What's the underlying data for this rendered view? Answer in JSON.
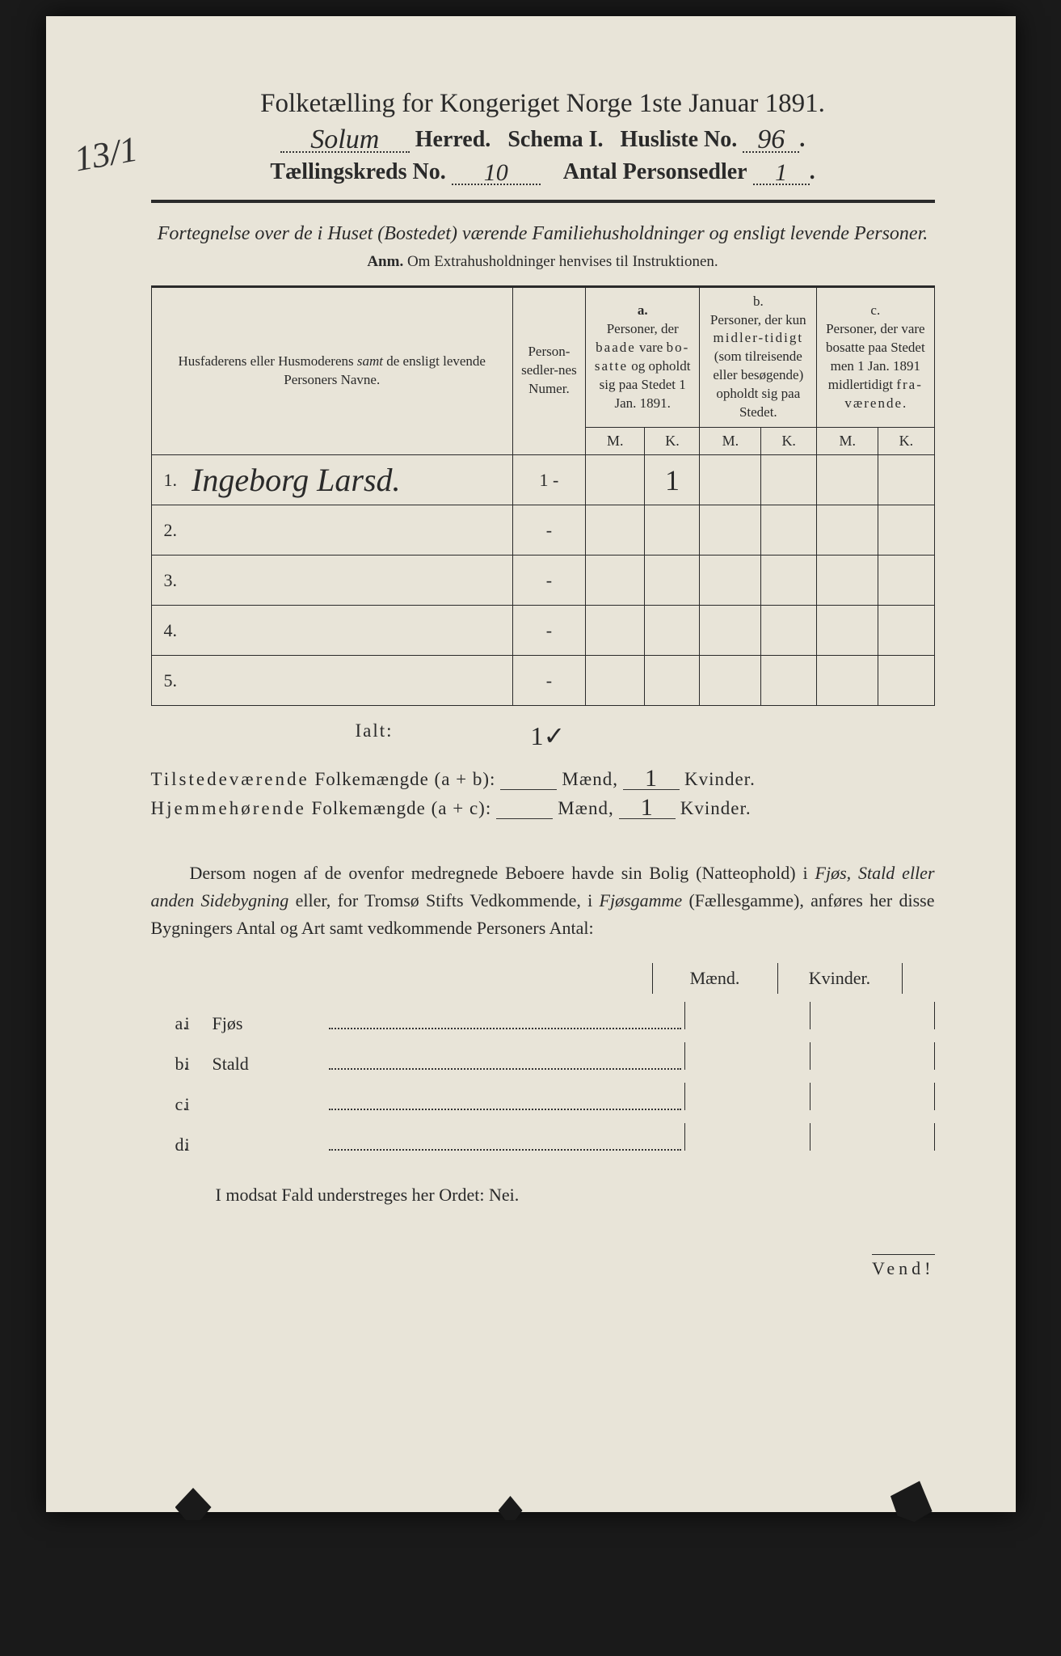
{
  "background_color": "#e8e4d8",
  "text_color": "#2a2a2a",
  "page_border_dark": "#1a1a1a",
  "handwriting_color": "#2a2a2a",
  "margin_note": "13/1",
  "title": "Folketælling for Kongeriget Norge 1ste Januar 1891.",
  "header": {
    "herred_value": "Solum",
    "herred_label": "Herred.",
    "schema_label": "Schema I.",
    "husliste_label": "Husliste No.",
    "husliste_value": "96",
    "kreds_label": "Tællingskreds No.",
    "kreds_value": "10",
    "antal_label": "Antal Personsedler",
    "antal_value": "1"
  },
  "intro": "Fortegnelse over de i Huset (Bostedet) værende Familiehusholdninger og ensligt levende Personer.",
  "anm_label": "Anm.",
  "anm_text": "Om Extrahusholdninger henvises til Instruktionen.",
  "columns": {
    "names": "Husfaderens eller Husmoderens samt de ensligt levende Personers Navne.",
    "sedler": "Person-sedler-nes Numer.",
    "a_label": "a.",
    "a_text": "Personer, der baade vare bosatte og opholdt sig paa Stedet 1 Jan. 1891.",
    "b_label": "b.",
    "b_text": "Personer, der kun midlertidigt (som tilreisende eller besøgende) opholdt sig paa Stedet.",
    "c_label": "c.",
    "c_text": "Personer, der vare bosatte paa Stedet men 1 Jan. 1891 midlertidigt fraværende.",
    "M": "M.",
    "K": "K."
  },
  "rows": [
    {
      "n": "1.",
      "name": "Ingeborg Larsd.",
      "sedler": "1 -",
      "aM": "",
      "aK": "1",
      "bM": "",
      "bK": "",
      "cM": "",
      "cK": ""
    },
    {
      "n": "2.",
      "name": "",
      "sedler": "-",
      "aM": "",
      "aK": "",
      "bM": "",
      "bK": "",
      "cM": "",
      "cK": ""
    },
    {
      "n": "3.",
      "name": "",
      "sedler": "-",
      "aM": "",
      "aK": "",
      "bM": "",
      "bK": "",
      "cM": "",
      "cK": ""
    },
    {
      "n": "4.",
      "name": "",
      "sedler": "-",
      "aM": "",
      "aK": "",
      "bM": "",
      "bK": "",
      "cM": "",
      "cK": ""
    },
    {
      "n": "5.",
      "name": "",
      "sedler": "-",
      "aM": "",
      "aK": "",
      "bM": "",
      "bK": "",
      "cM": "",
      "cK": ""
    }
  ],
  "ialt_label": "Ialt:",
  "ialt_value": "1✓",
  "summary": {
    "line1_a": "Tilstedeværende",
    "line1_b": "Folkemængde (a + b):",
    "line2_a": "Hjemmehørende",
    "line2_b": "Folkemængde (a + c):",
    "maend": "Mænd,",
    "kvinder": "Kvinder.",
    "v1_m": "",
    "v1_k": "1",
    "v2_m": "",
    "v2_k": "1"
  },
  "para": {
    "p1": "Dersom nogen af de ovenfor medregnede Beboere havde sin Bolig (Natteophold) i ",
    "p2": "Fjøs, Stald eller anden Sidebygning",
    "p3": " eller, for Tromsø Stifts Vedkommende, i ",
    "p4": "Fjøsgamme",
    "p5": " (Fællesgamme), anføres her disse Bygningers Antal og Art samt vedkommende Personers Antal:"
  },
  "mk": {
    "m": "Mænd.",
    "k": "Kvinder."
  },
  "list": [
    {
      "a": "a.",
      "b": "i",
      "c": "Fjøs"
    },
    {
      "a": "b.",
      "b": "i",
      "c": "Stald"
    },
    {
      "a": "c.",
      "b": "i",
      "c": ""
    },
    {
      "a": "d.",
      "b": "i",
      "c": ""
    }
  ],
  "nei": "I modsat Fald understreges her Ordet: Nei.",
  "vend": "Vend!"
}
